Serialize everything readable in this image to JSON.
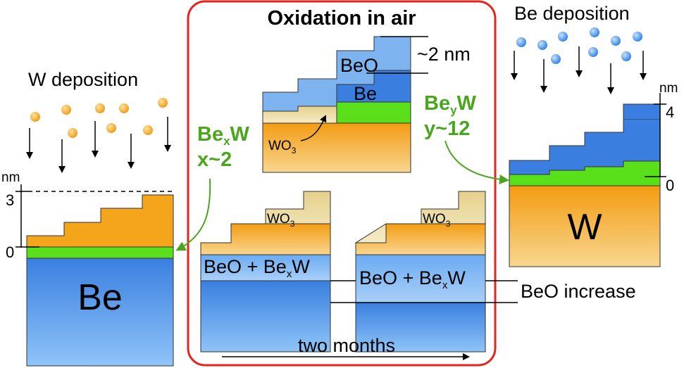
{
  "title": "Oxidation in air",
  "left": {
    "heading": "W deposition",
    "substrate": "Be",
    "unit": "nm",
    "tick_top": "3",
    "tick_zero": "0"
  },
  "right": {
    "heading": "Be deposition",
    "substrate": "W",
    "unit": "nm",
    "tick_top": "4",
    "tick_zero": "0"
  },
  "center_top": {
    "beo": "BeO",
    "be": "Be",
    "thickness": "~2 nm",
    "wo3_base": "WO",
    "wo3_sub": "3"
  },
  "compounds": {
    "bexw_base": "Be",
    "bexw_sub": "x",
    "bexw_w": "W",
    "bexw_value": "x~2",
    "beyw_base": "Be",
    "beyw_sub": "y",
    "beyw_w": "W",
    "beyw_value": "y~12"
  },
  "bottom": {
    "layer_prefix": "BeO + Be",
    "layer_sub": "x",
    "layer_w": "W",
    "wo3_base": "WO",
    "wo3_sub": "3",
    "increase": "BeO increase",
    "time": "two months"
  },
  "colors": {
    "frame": "#e8231c",
    "green_text": "#4aa61e",
    "tungsten": "#f4a51c",
    "beryllium": "#4f90e6",
    "interlayer": "#5ae01b",
    "oxide_wo3": "#efe0a6",
    "oxide_beo": "#7db4f0"
  }
}
